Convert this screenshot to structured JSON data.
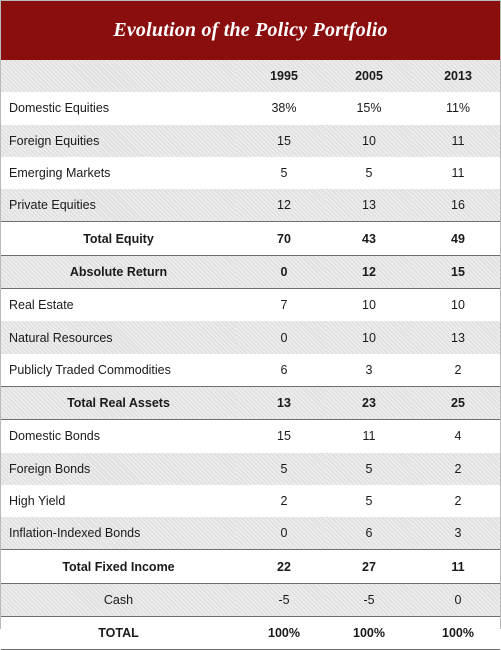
{
  "title": "Evolution of the Policy Portfolio",
  "columns": [
    "1995",
    "2005",
    "2013"
  ],
  "rows": [
    {
      "label": "Domestic Equities",
      "v1995": "38%",
      "v2005": "15%",
      "v2013": "11%"
    },
    {
      "label": "Foreign  Equities",
      "v1995": "15",
      "v2005": "10",
      "v2013": "11"
    },
    {
      "label": "Emerging Markets",
      "v1995": "5",
      "v2005": "5",
      "v2013": "11"
    },
    {
      "label": "Private Equities",
      "v1995": "12",
      "v2005": "13",
      "v2013": "16"
    },
    {
      "label": "Total Equity",
      "v1995": "70",
      "v2005": "43",
      "v2013": "49"
    },
    {
      "label": "Absolute Return",
      "v1995": "0",
      "v2005": "12",
      "v2013": "15"
    },
    {
      "label": "Real Estate",
      "v1995": "7",
      "v2005": "10",
      "v2013": "10"
    },
    {
      "label": "Natural Resources",
      "v1995": "0",
      "v2005": "10",
      "v2013": "13"
    },
    {
      "label": "Publicly Traded Commodities",
      "v1995": "6",
      "v2005": "3",
      "v2013": "2"
    },
    {
      "label": "Total Real Assets",
      "v1995": "13",
      "v2005": "23",
      "v2013": "25"
    },
    {
      "label": "Domestic Bonds",
      "v1995": "15",
      "v2005": "11",
      "v2013": "4"
    },
    {
      "label": "Foreign Bonds",
      "v1995": "5",
      "v2005": "5",
      "v2013": "2"
    },
    {
      "label": "High Yield",
      "v1995": "2",
      "v2005": "5",
      "v2013": "2"
    },
    {
      "label": "Inflation-Indexed Bonds",
      "v1995": "0",
      "v2005": "6",
      "v2013": "3"
    },
    {
      "label": "Total Fixed Income",
      "v1995": "22",
      "v2005": "27",
      "v2013": "11"
    },
    {
      "label": "Cash",
      "v1995": "-5",
      "v2005": "-5",
      "v2013": "0"
    },
    {
      "label": "TOTAL",
      "v1995": "100%",
      "v2005": "100%",
      "v2013": "100%"
    }
  ]
}
